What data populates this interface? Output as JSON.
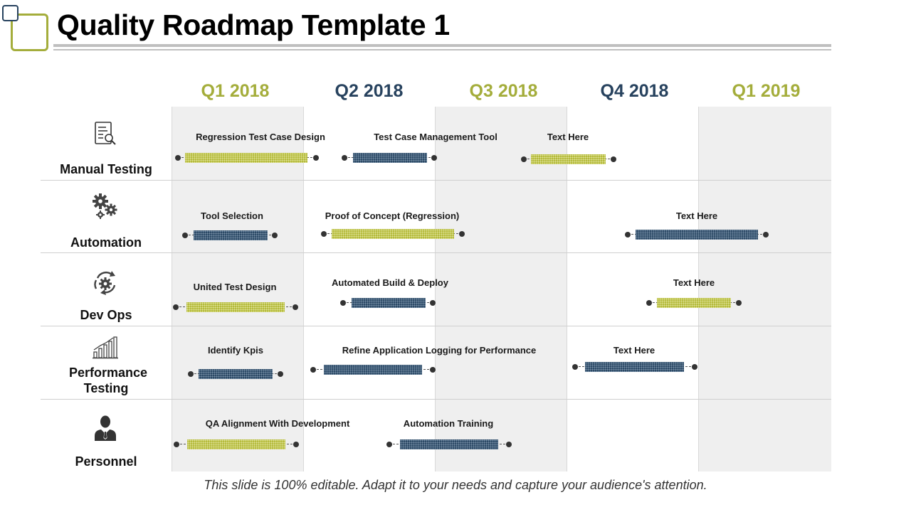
{
  "title": "Quality Roadmap Template 1",
  "colors": {
    "green": "#a4ad3b",
    "navy": "#27425e"
  },
  "quarters": [
    {
      "label": "Q1 2018",
      "color": "#a4ad3b"
    },
    {
      "label": "Q2 2018",
      "color": "#27425e"
    },
    {
      "label": "Q3 2018",
      "color": "#a4ad3b"
    },
    {
      "label": "Q4 2018",
      "color": "#27425e"
    },
    {
      "label": "Q1 2019",
      "color": "#a4ad3b"
    }
  ],
  "categories": [
    {
      "label": "Manual Testing",
      "icon": "document-search-icon"
    },
    {
      "label": "Automation",
      "icon": "gears-icon"
    },
    {
      "label": "Dev Ops",
      "icon": "cycle-gear-icon"
    },
    {
      "label": "Performance Testing",
      "icon": "bar-growth-icon"
    },
    {
      "label": "Personnel",
      "icon": "person-icon"
    }
  ],
  "tasks": [
    {
      "label": "Regression  Test Case Design",
      "color": "green"
    },
    {
      "label": "Test Case Management Tool",
      "color": "navy"
    },
    {
      "label": "Text Here",
      "color": "green"
    },
    {
      "label": "Tool Selection",
      "color": "navy"
    },
    {
      "label": "Proof of Concept (Regression)",
      "color": "green"
    },
    {
      "label": "Text Here",
      "color": "navy"
    },
    {
      "label": "United Test Design",
      "color": "green"
    },
    {
      "label": "Automated Build & Deploy",
      "color": "navy"
    },
    {
      "label": "Text Here",
      "color": "green"
    },
    {
      "label": "Identify Kpis",
      "color": "navy"
    },
    {
      "label": "Refine Application Logging for Performance",
      "color": "navy"
    },
    {
      "label": "Text Here",
      "color": "navy"
    },
    {
      "label": "QA Alignment With Development",
      "color": "green"
    },
    {
      "label": "Automation Training",
      "color": "navy"
    }
  ],
  "footer": "This slide is 100% editable. Adapt it to your needs and capture your audience's attention."
}
